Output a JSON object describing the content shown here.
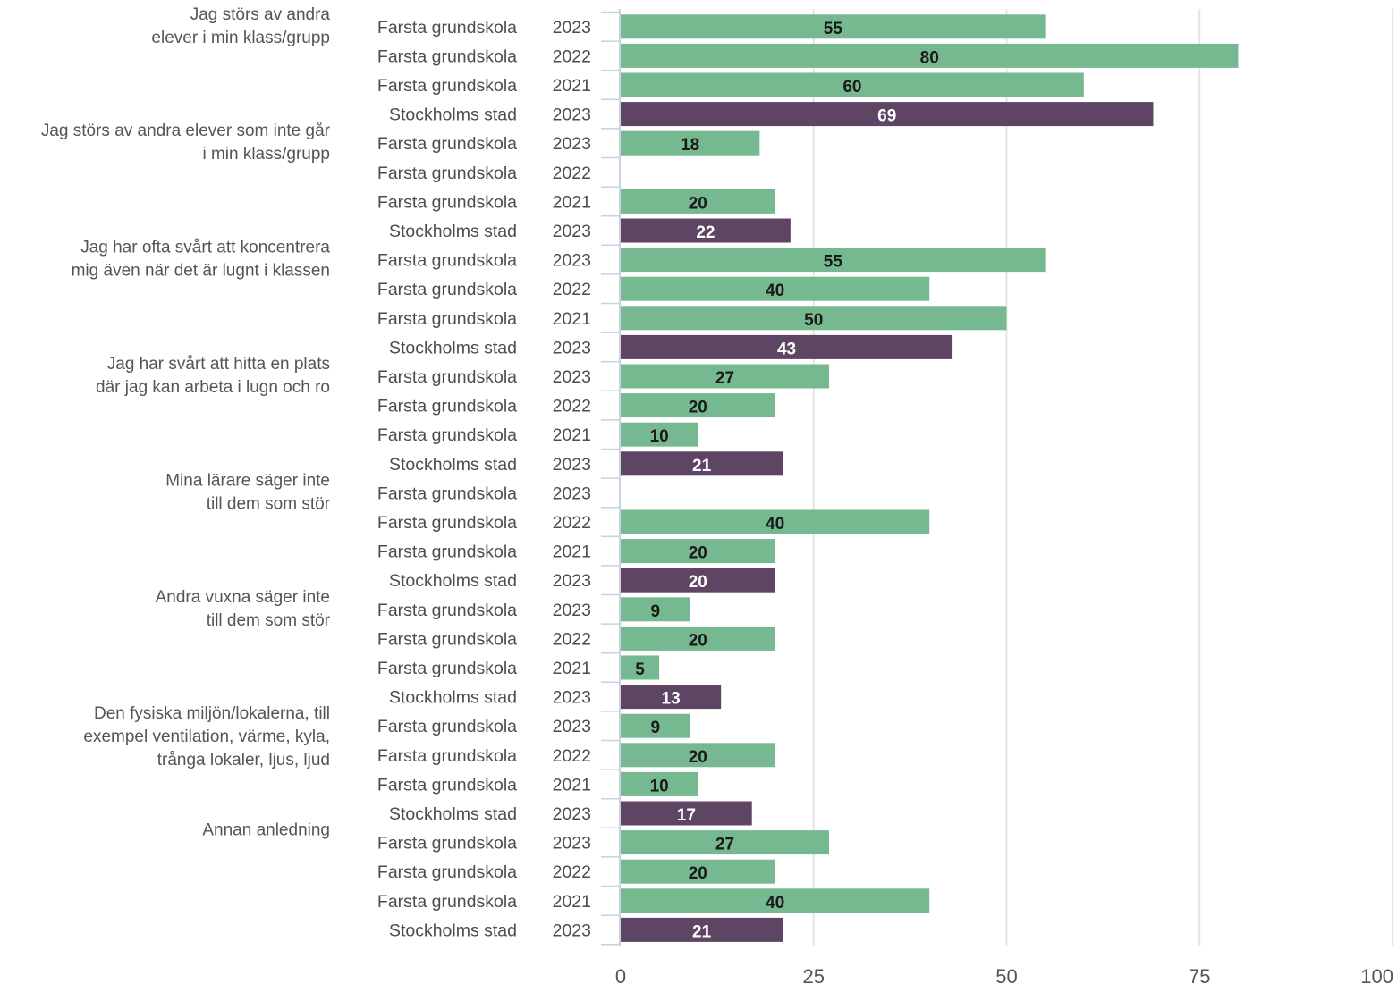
{
  "chart_data": {
    "type": "bar",
    "orientation": "horizontal",
    "xlim": [
      0,
      100
    ],
    "xticks": [
      "0",
      "25",
      "50",
      "75",
      "100"
    ],
    "grid": true,
    "colors": {
      "Farsta grundskola": "#76b88f",
      "Stockholms stad": "#5e4563"
    },
    "label_colors": {
      "Farsta grundskola": "#1a1a1a",
      "Stockholms stad": "#ffffff"
    },
    "groups": [
      {
        "label": [
          "Jag störs av andra",
          "elever i min klass/grupp"
        ],
        "rows": [
          {
            "school": "Farsta grundskola",
            "year": "2023",
            "value": 55
          },
          {
            "school": "Farsta grundskola",
            "year": "2022",
            "value": 80
          },
          {
            "school": "Farsta grundskola",
            "year": "2021",
            "value": 60
          },
          {
            "school": "Stockholms stad",
            "year": "2023",
            "value": 69
          }
        ]
      },
      {
        "label": [
          "Jag störs av andra elever som inte går",
          "i min klass/grupp"
        ],
        "rows": [
          {
            "school": "Farsta grundskola",
            "year": "2023",
            "value": 18
          },
          {
            "school": "Farsta grundskola",
            "year": "2022",
            "value": null
          },
          {
            "school": "Farsta grundskola",
            "year": "2021",
            "value": 20
          },
          {
            "school": "Stockholms stad",
            "year": "2023",
            "value": 22
          }
        ]
      },
      {
        "label": [
          "Jag har ofta svårt att koncentrera",
          "mig även när det är lugnt i klassen"
        ],
        "rows": [
          {
            "school": "Farsta grundskola",
            "year": "2023",
            "value": 55
          },
          {
            "school": "Farsta grundskola",
            "year": "2022",
            "value": 40
          },
          {
            "school": "Farsta grundskola",
            "year": "2021",
            "value": 50
          },
          {
            "school": "Stockholms stad",
            "year": "2023",
            "value": 43
          }
        ]
      },
      {
        "label": [
          "Jag har svårt att hitta en plats",
          "där jag kan arbeta i lugn och ro"
        ],
        "rows": [
          {
            "school": "Farsta grundskola",
            "year": "2023",
            "value": 27
          },
          {
            "school": "Farsta grundskola",
            "year": "2022",
            "value": 20
          },
          {
            "school": "Farsta grundskola",
            "year": "2021",
            "value": 10
          },
          {
            "school": "Stockholms stad",
            "year": "2023",
            "value": 21
          }
        ]
      },
      {
        "label": [
          "Mina lärare säger inte",
          "till dem som stör"
        ],
        "rows": [
          {
            "school": "Farsta grundskola",
            "year": "2023",
            "value": null
          },
          {
            "school": "Farsta grundskola",
            "year": "2022",
            "value": 40
          },
          {
            "school": "Farsta grundskola",
            "year": "2021",
            "value": 20
          },
          {
            "school": "Stockholms stad",
            "year": "2023",
            "value": 20
          }
        ]
      },
      {
        "label": [
          "Andra vuxna säger inte",
          "till dem som stör"
        ],
        "rows": [
          {
            "school": "Farsta grundskola",
            "year": "2023",
            "value": 9
          },
          {
            "school": "Farsta grundskola",
            "year": "2022",
            "value": 20
          },
          {
            "school": "Farsta grundskola",
            "year": "2021",
            "value": 5
          },
          {
            "school": "Stockholms stad",
            "year": "2023",
            "value": 13
          }
        ]
      },
      {
        "label": [
          "Den fysiska miljön/lokalerna, till",
          "exempel ventilation, värme, kyla,",
          "trånga lokaler, ljus, ljud"
        ],
        "rows": [
          {
            "school": "Farsta grundskola",
            "year": "2023",
            "value": 9
          },
          {
            "school": "Farsta grundskola",
            "year": "2022",
            "value": 20
          },
          {
            "school": "Farsta grundskola",
            "year": "2021",
            "value": 10
          },
          {
            "school": "Stockholms stad",
            "year": "2023",
            "value": 17
          }
        ]
      },
      {
        "label": [
          "Annan anledning"
        ],
        "rows": [
          {
            "school": "Farsta grundskola",
            "year": "2023",
            "value": 27
          },
          {
            "school": "Farsta grundskola",
            "year": "2022",
            "value": 20
          },
          {
            "school": "Farsta grundskola",
            "year": "2021",
            "value": 40
          },
          {
            "school": "Stockholms stad",
            "year": "2023",
            "value": 21
          }
        ]
      }
    ]
  }
}
